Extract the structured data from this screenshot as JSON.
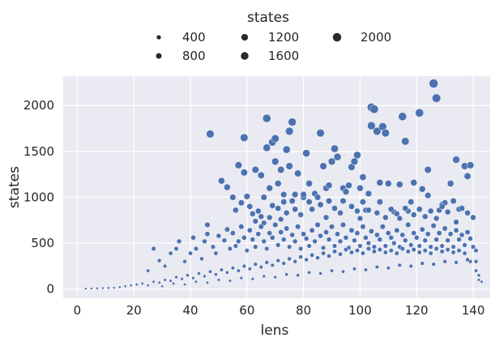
{
  "chart_data": {
    "type": "scatter",
    "xlabel": "lens",
    "ylabel": "states",
    "xlim": [
      -5,
      146
    ],
    "ylim": [
      -100,
      2320
    ],
    "xticks": [
      0,
      20,
      40,
      60,
      80,
      100,
      120,
      140
    ],
    "yticks": [
      0,
      500,
      1000,
      1500,
      2000
    ],
    "grid": true,
    "point_color": "#4c72b0",
    "background_color": "#eaeaf2",
    "legend": {
      "title": "states",
      "placement": "top-center-outside",
      "entries": [
        {
          "label": "400",
          "size_value": 400
        },
        {
          "label": "800",
          "size_value": 800
        },
        {
          "label": "1200",
          "size_value": 1200
        },
        {
          "label": "1600",
          "size_value": 1600
        },
        {
          "label": "2000",
          "size_value": 2000
        }
      ]
    },
    "points": [
      [
        47,
        1690
      ],
      [
        57,
        1350
      ],
      [
        59,
        1650
      ],
      [
        59,
        1270
      ],
      [
        63,
        1300
      ],
      [
        65,
        1240
      ],
      [
        66,
        1000
      ],
      [
        67,
        1860
      ],
      [
        67,
        1540
      ],
      [
        68,
        1100
      ],
      [
        69,
        1600
      ],
      [
        70,
        1640
      ],
      [
        70,
        1390
      ],
      [
        71,
        1150
      ],
      [
        72,
        1300
      ],
      [
        73,
        1030
      ],
      [
        73,
        950
      ],
      [
        74,
        1520
      ],
      [
        75,
        1340
      ],
      [
        75,
        1720
      ],
      [
        76,
        1820
      ],
      [
        77,
        1030
      ],
      [
        78,
        1260
      ],
      [
        80,
        1000
      ],
      [
        81,
        1480
      ],
      [
        82,
        1150
      ],
      [
        84,
        1040
      ],
      [
        86,
        1700
      ],
      [
        87,
        1340
      ],
      [
        88,
        1100
      ],
      [
        89,
        1130
      ],
      [
        90,
        1390
      ],
      [
        91,
        1530
      ],
      [
        92,
        1440
      ],
      [
        94,
        1100
      ],
      [
        95,
        1060
      ],
      [
        97,
        1330
      ],
      [
        98,
        1390
      ],
      [
        99,
        1460
      ],
      [
        100,
        1100
      ],
      [
        101,
        1220
      ],
      [
        102,
        860
      ],
      [
        103,
        1040
      ],
      [
        104,
        1780
      ],
      [
        104,
        1980
      ],
      [
        105,
        1960
      ],
      [
        106,
        1720
      ],
      [
        107,
        1160
      ],
      [
        108,
        1770
      ],
      [
        109,
        1700
      ],
      [
        110,
        1150
      ],
      [
        112,
        840
      ],
      [
        114,
        1140
      ],
      [
        115,
        1880
      ],
      [
        116,
        1610
      ],
      [
        117,
        850
      ],
      [
        119,
        1160
      ],
      [
        121,
        1920
      ],
      [
        122,
        1090
      ],
      [
        124,
        1300
      ],
      [
        126,
        2240
      ],
      [
        127,
        2080
      ],
      [
        128,
        860
      ],
      [
        129,
        920
      ],
      [
        130,
        940
      ],
      [
        132,
        1150
      ],
      [
        134,
        1410
      ],
      [
        135,
        870
      ],
      [
        137,
        1340
      ],
      [
        138,
        1230
      ],
      [
        139,
        1350
      ],
      [
        140,
        780
      ],
      [
        141,
        420
      ],
      [
        46,
        700
      ],
      [
        51,
        1180
      ],
      [
        53,
        1110
      ],
      [
        55,
        1000
      ],
      [
        56,
        860
      ],
      [
        58,
        940
      ],
      [
        60,
        1010
      ],
      [
        61,
        900
      ],
      [
        62,
        820
      ],
      [
        63,
        740
      ],
      [
        64,
        850
      ],
      [
        65,
        790
      ],
      [
        66,
        720
      ],
      [
        68,
        780
      ],
      [
        69,
        910
      ],
      [
        71,
        880
      ],
      [
        72,
        760
      ],
      [
        74,
        830
      ],
      [
        76,
        960
      ],
      [
        77,
        870
      ],
      [
        79,
        810
      ],
      [
        80,
        1030
      ],
      [
        82,
        950
      ],
      [
        83,
        870
      ],
      [
        85,
        1000
      ],
      [
        86,
        920
      ],
      [
        88,
        780
      ],
      [
        89,
        960
      ],
      [
        91,
        880
      ],
      [
        93,
        830
      ],
      [
        94,
        960
      ],
      [
        96,
        1130
      ],
      [
        97,
        900
      ],
      [
        99,
        850
      ],
      [
        100,
        770
      ],
      [
        101,
        950
      ],
      [
        103,
        860
      ],
      [
        106,
        830
      ],
      [
        107,
        950
      ],
      [
        109,
        780
      ],
      [
        111,
        870
      ],
      [
        113,
        820
      ],
      [
        114,
        770
      ],
      [
        116,
        880
      ],
      [
        118,
        950
      ],
      [
        119,
        810
      ],
      [
        121,
        870
      ],
      [
        123,
        790
      ],
      [
        124,
        1020
      ],
      [
        125,
        850
      ],
      [
        127,
        770
      ],
      [
        129,
        900
      ],
      [
        131,
        840
      ],
      [
        133,
        960
      ],
      [
        134,
        730
      ],
      [
        136,
        880
      ],
      [
        138,
        830
      ],
      [
        25,
        200
      ],
      [
        27,
        440
      ],
      [
        29,
        310
      ],
      [
        31,
        250
      ],
      [
        33,
        390
      ],
      [
        35,
        440
      ],
      [
        36,
        520
      ],
      [
        38,
        300
      ],
      [
        40,
        390
      ],
      [
        41,
        560
      ],
      [
        42,
        440
      ],
      [
        44,
        330
      ],
      [
        45,
        520
      ],
      [
        46,
        600
      ],
      [
        48,
        460
      ],
      [
        49,
        390
      ],
      [
        50,
        580
      ],
      [
        52,
        530
      ],
      [
        53,
        650
      ],
      [
        54,
        440
      ],
      [
        55,
        610
      ],
      [
        56,
        470
      ],
      [
        57,
        520
      ],
      [
        58,
        680
      ],
      [
        59,
        560
      ],
      [
        60,
        420
      ],
      [
        61,
        640
      ],
      [
        62,
        540
      ],
      [
        63,
        460
      ],
      [
        64,
        600
      ],
      [
        65,
        680
      ],
      [
        66,
        520
      ],
      [
        67,
        440
      ],
      [
        68,
        610
      ],
      [
        69,
        560
      ],
      [
        70,
        700
      ],
      [
        71,
        480
      ],
      [
        72,
        620
      ],
      [
        73,
        540
      ],
      [
        74,
        660
      ],
      [
        75,
        460
      ],
      [
        76,
        590
      ],
      [
        77,
        520
      ],
      [
        78,
        680
      ],
      [
        79,
        440
      ],
      [
        80,
        600
      ],
      [
        81,
        550
      ],
      [
        82,
        470
      ],
      [
        83,
        640
      ],
      [
        84,
        520
      ],
      [
        85,
        700
      ],
      [
        86,
        580
      ],
      [
        87,
        450
      ],
      [
        88,
        620
      ],
      [
        89,
        540
      ],
      [
        90,
        680
      ],
      [
        91,
        470
      ],
      [
        92,
        600
      ],
      [
        93,
        520
      ],
      [
        94,
        700
      ],
      [
        95,
        560
      ],
      [
        96,
        450
      ],
      [
        97,
        640
      ],
      [
        98,
        530
      ],
      [
        99,
        610
      ],
      [
        100,
        470
      ],
      [
        101,
        680
      ],
      [
        102,
        560
      ],
      [
        103,
        500
      ],
      [
        104,
        630
      ],
      [
        105,
        460
      ],
      [
        106,
        590
      ],
      [
        107,
        540
      ],
      [
        108,
        680
      ],
      [
        109,
        470
      ],
      [
        110,
        610
      ],
      [
        111,
        560
      ],
      [
        112,
        500
      ],
      [
        113,
        640
      ],
      [
        114,
        460
      ],
      [
        115,
        590
      ],
      [
        116,
        530
      ],
      [
        117,
        700
      ],
      [
        118,
        480
      ],
      [
        119,
        610
      ],
      [
        120,
        560
      ],
      [
        121,
        470
      ],
      [
        122,
        650
      ],
      [
        123,
        530
      ],
      [
        124,
        600
      ],
      [
        125,
        460
      ],
      [
        126,
        690
      ],
      [
        127,
        540
      ],
      [
        128,
        610
      ],
      [
        129,
        470
      ],
      [
        130,
        660
      ],
      [
        131,
        530
      ],
      [
        132,
        600
      ],
      [
        133,
        460
      ],
      [
        134,
        640
      ],
      [
        135,
        540
      ],
      [
        136,
        590
      ],
      [
        137,
        480
      ],
      [
        138,
        620
      ],
      [
        139,
        550
      ],
      [
        140,
        460
      ],
      [
        141,
        300
      ],
      [
        142,
        150
      ],
      [
        3,
        5
      ],
      [
        5,
        6
      ],
      [
        7,
        8
      ],
      [
        9,
        10
      ],
      [
        11,
        12
      ],
      [
        13,
        14
      ],
      [
        15,
        20
      ],
      [
        17,
        30
      ],
      [
        19,
        40
      ],
      [
        21,
        50
      ],
      [
        23,
        60
      ],
      [
        25,
        40
      ],
      [
        27,
        80
      ],
      [
        29,
        70
      ],
      [
        31,
        100
      ],
      [
        33,
        90
      ],
      [
        35,
        130
      ],
      [
        37,
        110
      ],
      [
        39,
        150
      ],
      [
        41,
        120
      ],
      [
        43,
        170
      ],
      [
        45,
        140
      ],
      [
        47,
        190
      ],
      [
        49,
        160
      ],
      [
        51,
        210
      ],
      [
        53,
        180
      ],
      [
        55,
        230
      ],
      [
        57,
        200
      ],
      [
        59,
        250
      ],
      [
        61,
        220
      ],
      [
        63,
        270
      ],
      [
        65,
        240
      ],
      [
        67,
        290
      ],
      [
        69,
        260
      ],
      [
        71,
        310
      ],
      [
        73,
        280
      ],
      [
        75,
        330
      ],
      [
        77,
        300
      ],
      [
        79,
        350
      ],
      [
        81,
        320
      ],
      [
        83,
        370
      ],
      [
        85,
        340
      ],
      [
        87,
        390
      ],
      [
        89,
        360
      ],
      [
        91,
        410
      ],
      [
        93,
        380
      ],
      [
        95,
        430
      ],
      [
        97,
        400
      ],
      [
        99,
        420
      ],
      [
        101,
        390
      ],
      [
        103,
        440
      ],
      [
        105,
        410
      ],
      [
        107,
        430
      ],
      [
        109,
        400
      ],
      [
        111,
        420
      ],
      [
        113,
        390
      ],
      [
        115,
        440
      ],
      [
        117,
        410
      ],
      [
        119,
        430
      ],
      [
        121,
        400
      ],
      [
        123,
        420
      ],
      [
        125,
        390
      ],
      [
        127,
        440
      ],
      [
        129,
        410
      ],
      [
        131,
        430
      ],
      [
        133,
        400
      ],
      [
        135,
        420
      ],
      [
        137,
        390
      ],
      [
        139,
        300
      ],
      [
        141,
        200
      ],
      [
        143,
        80
      ],
      [
        30,
        30
      ],
      [
        34,
        60
      ],
      [
        38,
        50
      ],
      [
        42,
        80
      ],
      [
        46,
        70
      ],
      [
        50,
        100
      ],
      [
        54,
        90
      ],
      [
        58,
        120
      ],
      [
        62,
        110
      ],
      [
        66,
        140
      ],
      [
        70,
        130
      ],
      [
        74,
        160
      ],
      [
        78,
        150
      ],
      [
        82,
        180
      ],
      [
        86,
        170
      ],
      [
        90,
        200
      ],
      [
        94,
        190
      ],
      [
        98,
        220
      ],
      [
        102,
        210
      ],
      [
        106,
        240
      ],
      [
        110,
        230
      ],
      [
        114,
        260
      ],
      [
        118,
        250
      ],
      [
        122,
        280
      ],
      [
        126,
        270
      ],
      [
        130,
        300
      ],
      [
        134,
        290
      ],
      [
        138,
        320
      ],
      [
        142,
        100
      ]
    ]
  }
}
